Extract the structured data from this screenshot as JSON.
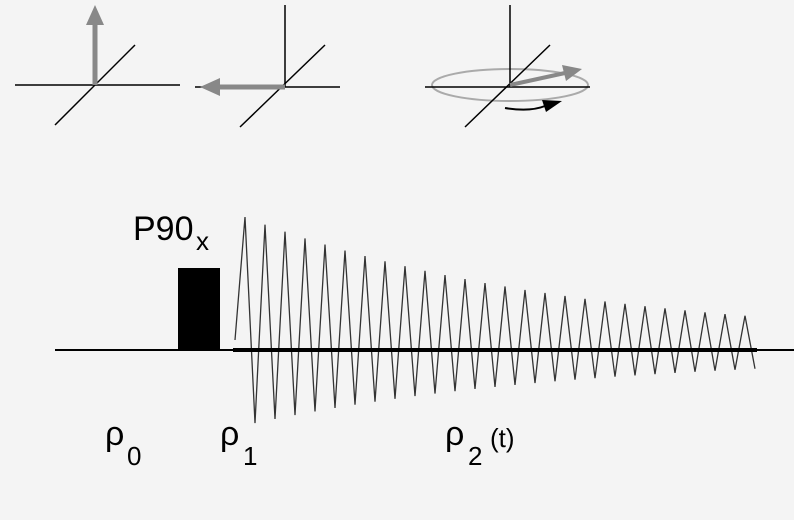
{
  "pulse": {
    "main": "P90",
    "sub": "x"
  },
  "states": [
    {
      "symbol": "ρ",
      "sub": "0"
    },
    {
      "symbol": "ρ",
      "sub": "1"
    },
    {
      "symbol": "ρ",
      "sub": "2",
      "suffix": "(t)"
    }
  ]
}
